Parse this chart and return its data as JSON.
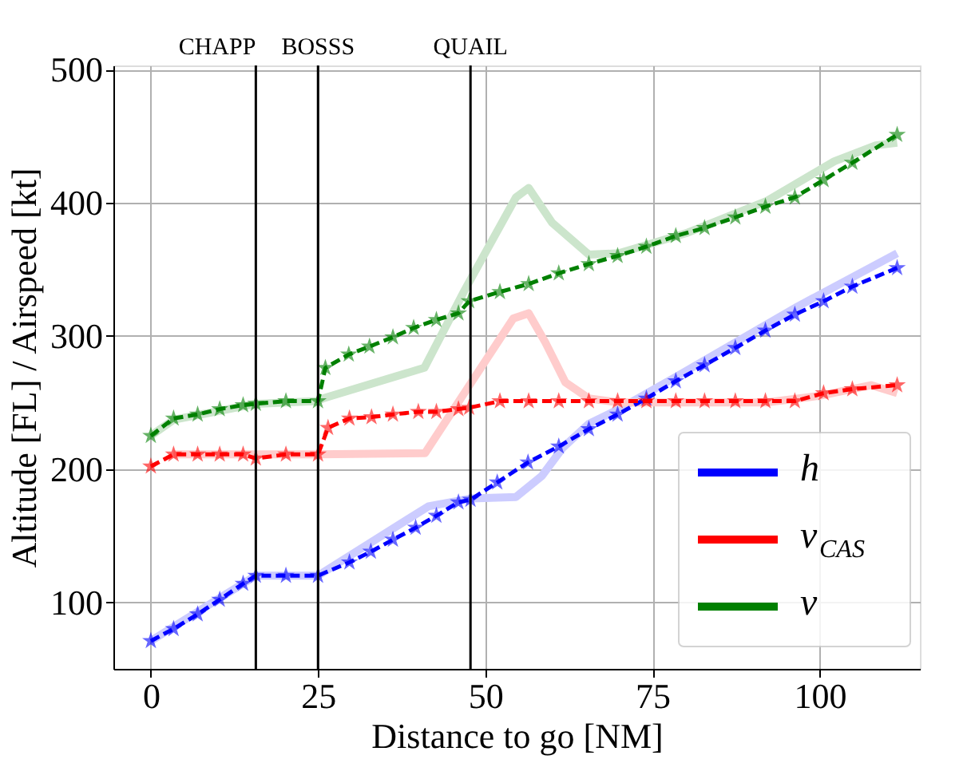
{
  "chart_data": {
    "type": "line",
    "xlabel": "Distance to go [NM]",
    "ylabel": "Altitude [FL] / Airspeed [kt]",
    "xlim": [
      -5.6,
      115
    ],
    "ylim": [
      50,
      503
    ],
    "xticks": [
      0,
      25,
      50,
      75,
      100
    ],
    "yticks": [
      100,
      200,
      300,
      400,
      500
    ],
    "grid": true,
    "legend": "bottom right",
    "ref_lines": [
      {
        "axis": "x",
        "value": 15.7,
        "label": "CHAPP",
        "color": "#000000"
      },
      {
        "axis": "x",
        "value": 25,
        "label": "BOSSS",
        "color": "#000000"
      },
      {
        "axis": "x",
        "value": 47.8,
        "label": "QUAIL",
        "color": "#000000"
      }
    ],
    "series": [
      {
        "color": "#ccccff",
        "line_style": "solid",
        "marker": "none",
        "x": [
          0,
          15.7,
          25,
          41.5,
          48,
          54.6,
          58.5,
          61.6,
          65.5,
          70,
          78.8,
          96.7,
          111.6
        ],
        "values": [
          71,
          120,
          120,
          172,
          178,
          179,
          195,
          216,
          234,
          245,
          270,
          322,
          362
        ]
      },
      {
        "color": "#ffcccc",
        "line_style": "solid",
        "marker": "none",
        "x": [
          3.4,
          25,
          41,
          47,
          54.2,
          56.5,
          59,
          62,
          65.5,
          70,
          92,
          100,
          107.7,
          111.6
        ],
        "values": [
          211,
          211,
          212,
          258,
          313,
          317,
          295,
          265,
          253,
          250,
          250,
          255,
          263,
          257
        ]
      },
      {
        "color": "#cce5cc",
        "line_style": "solid",
        "marker": "none",
        "x": [
          0,
          3.4,
          15.7,
          25,
          25.7,
          40.9,
          47,
          54.6,
          56.5,
          60,
          65.5,
          70,
          80,
          92,
          102.2,
          108.4,
          111.6
        ],
        "values": [
          225,
          237,
          249,
          251,
          253,
          276,
          335,
          404,
          411,
          385,
          361,
          362,
          377,
          401,
          431,
          443,
          445
        ]
      },
      {
        "name": "h",
        "color": "#0000ff",
        "line_style": "dashed",
        "marker": "star",
        "x": [
          0,
          3.4,
          7,
          10.3,
          13.8,
          15.7,
          20.2,
          25,
          29.7,
          32.9,
          36.2,
          39.6,
          42.7,
          46,
          47.8,
          51.8,
          56.4,
          61,
          65.5,
          69.8,
          74.1,
          78.5,
          82.8,
          87.4,
          91.9,
          96.3,
          100.6,
          104.9,
          111.6
        ],
        "values": [
          71,
          80,
          91,
          102,
          114,
          120,
          120,
          120,
          130,
          138,
          147,
          156,
          165,
          175,
          177,
          190,
          205,
          217,
          230,
          241,
          253,
          266,
          278,
          291,
          304,
          316,
          326,
          337,
          351
        ]
      },
      {
        "name": "v$_{CAS}$",
        "color": "#ff0000",
        "line_style": "dashed",
        "marker": "star",
        "x": [
          0,
          3.4,
          7,
          10.3,
          13.8,
          15.7,
          20.2,
          25,
          26.5,
          29.7,
          33,
          36.2,
          40,
          42.7,
          46,
          47.6,
          52.2,
          56.5,
          61,
          65.5,
          69.8,
          74.1,
          78.5,
          82.8,
          87.4,
          91.9,
          96.3,
          100.6,
          104.9,
          111.6
        ],
        "values": [
          202,
          211,
          211,
          211,
          211,
          208,
          211,
          211,
          231,
          238,
          239,
          241,
          243,
          243,
          245,
          246,
          251,
          251,
          251,
          251,
          251,
          251,
          251,
          251,
          251,
          251,
          251,
          257,
          260,
          263
        ]
      },
      {
        "name": "v",
        "color": "#008000",
        "line_style": "dashed",
        "marker": "star",
        "x": [
          0,
          3.4,
          7,
          10.3,
          13.8,
          15.7,
          20.2,
          25,
          26.1,
          29.6,
          32.7,
          36.2,
          39.3,
          42.7,
          46,
          47.6,
          52.2,
          56.5,
          61,
          65.5,
          69.8,
          74.1,
          78.5,
          82.8,
          87.4,
          91.9,
          96.3,
          100.6,
          104.9,
          111.6
        ],
        "values": [
          225,
          238,
          241,
          245,
          248,
          249,
          251,
          251,
          276,
          286,
          292,
          299,
          306,
          312,
          317,
          326,
          333,
          339,
          347,
          354,
          360,
          367,
          375,
          381,
          389,
          397,
          404,
          417,
          430,
          451
        ]
      }
    ]
  }
}
